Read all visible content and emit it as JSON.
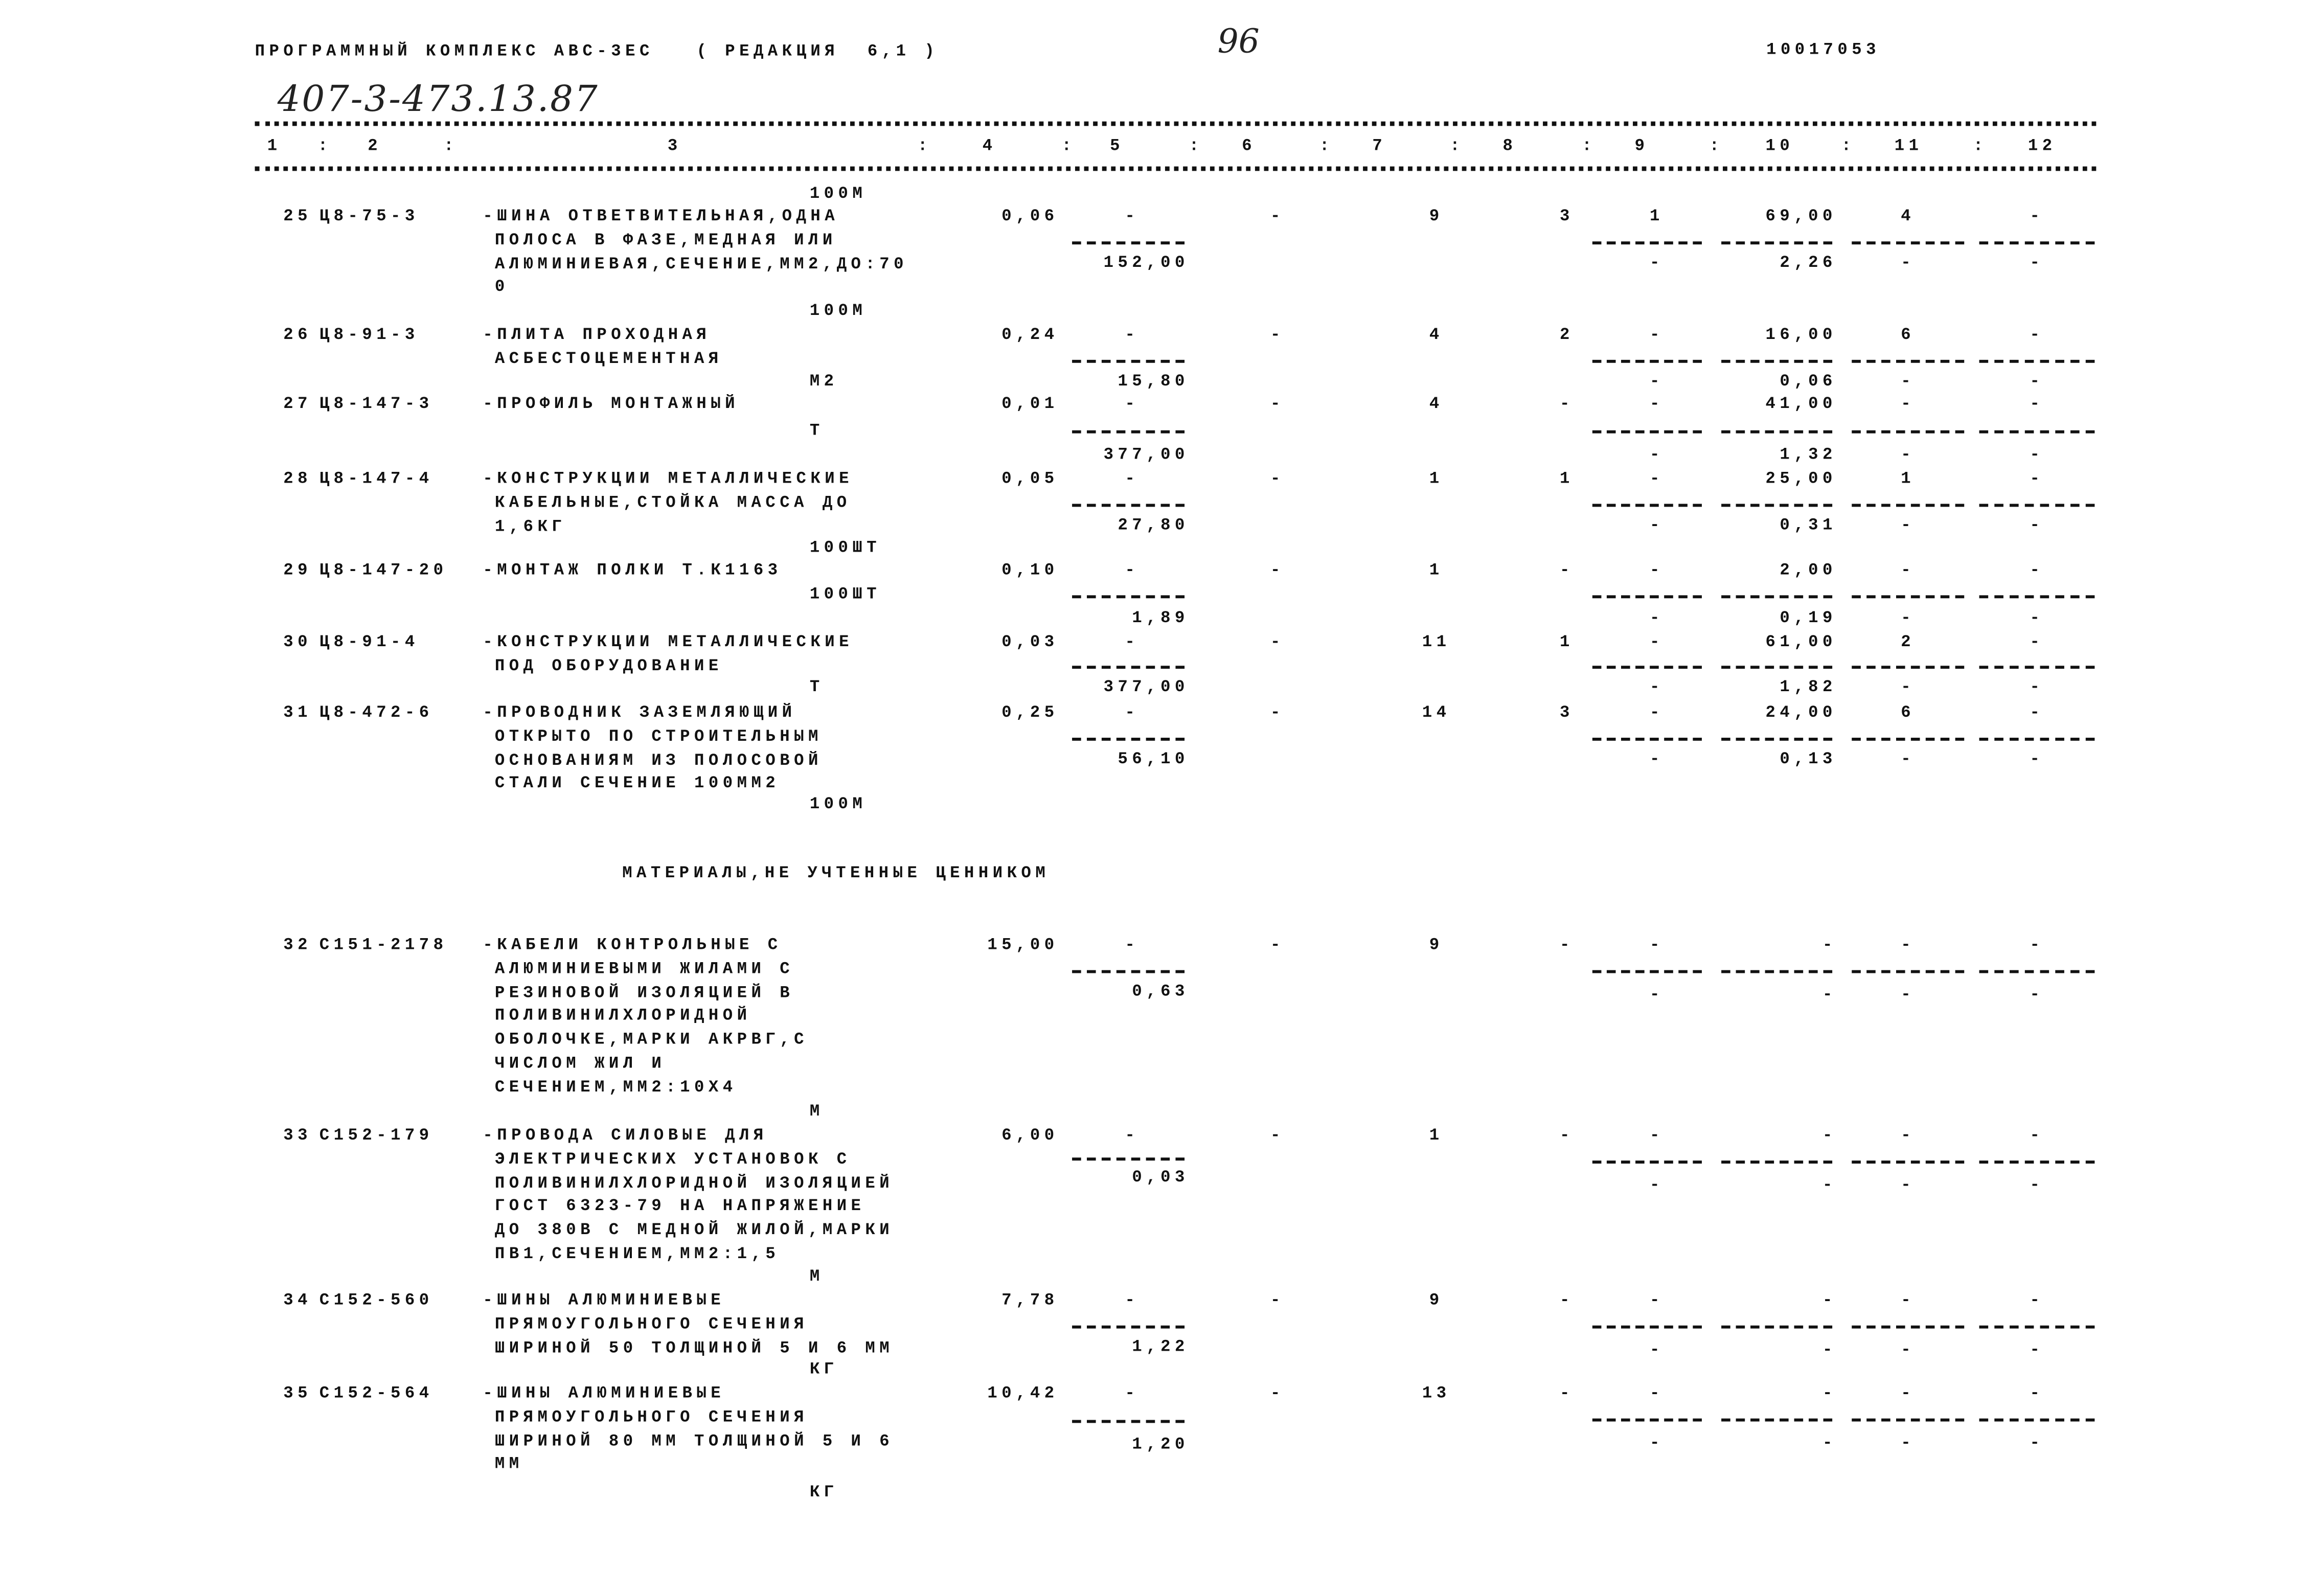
{
  "header": {
    "program_title": "ПРОГРАММНЫЙ КОМПЛЕКС АВС-3ЕС   ( РЕДАКЦИЯ  6,1 )",
    "page_number": "96",
    "document_code": "10017053",
    "handwritten_reference": "407-3-473.13.87"
  },
  "column_numbers": [
    "1",
    "2",
    "3",
    "4",
    "5",
    "6",
    "7",
    "8",
    "9",
    "10",
    "11",
    "12"
  ],
  "carryover_unit": "100М",
  "section_heading": "МАТЕРИАЛЫ,НЕ УЧТЕННЫЕ ЦЕННИКОМ",
  "items": [
    {
      "num": "25",
      "code": "Ц8-75-3",
      "desc": [
        "-ШИНА ОТВЕТВИТЕЛЬНАЯ,ОДНА",
        "ПОЛОСА В ФАЗЕ,МЕДНАЯ ИЛИ",
        "АЛЮМИНИЕВАЯ,СЕЧЕНИЕ,ММ2,ДО:70",
        "0"
      ],
      "unit": "100М",
      "c4": "0,06",
      "c5": "-",
      "c5b": "152,00",
      "c6": "-",
      "c7": "9",
      "c8": "3",
      "top": [
        "1",
        "69,00",
        "4",
        "-"
      ],
      "bottom": [
        "-",
        "2,26",
        "-",
        "-"
      ]
    },
    {
      "num": "26",
      "code": "Ц8-91-3",
      "desc": [
        "-ПЛИТА ПРОХОДНАЯ",
        "АСБЕСТОЦЕМЕНТНАЯ"
      ],
      "unit": "М2",
      "c4": "0,24",
      "c5": "-",
      "c5b": "15,80",
      "c6": "-",
      "c7": "4",
      "c8": "2",
      "top": [
        "-",
        "16,00",
        "6",
        "-"
      ],
      "bottom": [
        "-",
        "0,06",
        "-",
        "-"
      ]
    },
    {
      "num": "27",
      "code": "Ц8-147-3",
      "desc": [
        "-ПРОФИЛЬ МОНТАЖНЫЙ"
      ],
      "unit": "Т",
      "c4": "0,01",
      "c5": "-",
      "c5b": "377,00",
      "c6": "-",
      "c7": "4",
      "c8": "-",
      "top": [
        "-",
        "41,00",
        "-",
        "-"
      ],
      "bottom": [
        "-",
        "1,32",
        "-",
        "-"
      ]
    },
    {
      "num": "28",
      "code": "Ц8-147-4",
      "desc": [
        "-КОНСТРУКЦИИ МЕТАЛЛИЧЕСКИЕ",
        "КАБЕЛЬНЫЕ,СТОЙКА МАССА ДО",
        "1,6КГ"
      ],
      "unit": "100ШТ",
      "c4": "0,05",
      "c5": "-",
      "c5b": "27,80",
      "c6": "-",
      "c7": "1",
      "c8": "1",
      "top": [
        "-",
        "25,00",
        "1",
        "-"
      ],
      "bottom": [
        "-",
        "0,31",
        "-",
        "-"
      ]
    },
    {
      "num": "29",
      "code": "Ц8-147-20",
      "desc": [
        "-МОНТАЖ ПОЛКИ Т.К1163"
      ],
      "unit": "100ШТ",
      "c4": "0,10",
      "c5": "-",
      "c5b": "1,89",
      "c6": "-",
      "c7": "1",
      "c8": "-",
      "top": [
        "-",
        "2,00",
        "-",
        "-"
      ],
      "bottom": [
        "-",
        "0,19",
        "-",
        "-"
      ]
    },
    {
      "num": "30",
      "code": "Ц8-91-4",
      "desc": [
        "-КОНСТРУКЦИИ МЕТАЛЛИЧЕСКИЕ",
        "ПОД ОБОРУДОВАНИЕ"
      ],
      "unit": "Т",
      "c4": "0,03",
      "c5": "-",
      "c5b": "377,00",
      "c6": "-",
      "c7": "11",
      "c8": "1",
      "top": [
        "-",
        "61,00",
        "2",
        "-"
      ],
      "bottom": [
        "-",
        "1,82",
        "-",
        "-"
      ]
    },
    {
      "num": "31",
      "code": "Ц8-472-6",
      "desc": [
        "-ПРОВОДНИК ЗАЗЕМЛЯЮЩИЙ",
        "ОТКРЫТО ПО СТРОИТЕЛЬНЫМ",
        "ОСНОВАНИЯМ ИЗ ПОЛОСОВОЙ",
        "СТАЛИ СЕЧЕНИЕ 100ММ2"
      ],
      "unit": "100М",
      "c4": "0,25",
      "c5": "-",
      "c5b": "56,10",
      "c6": "-",
      "c7": "14",
      "c8": "3",
      "top": [
        "-",
        "24,00",
        "6",
        "-"
      ],
      "bottom": [
        "-",
        "0,13",
        "-",
        "-"
      ]
    },
    {
      "num": "32",
      "code": "С151-2178",
      "desc": [
        "-КАБЕЛИ КОНТРОЛЬНЫЕ С",
        "АЛЮМИНИЕВЫМИ ЖИЛАМИ С",
        "РЕЗИНОВОЙ ИЗОЛЯЦИЕЙ В",
        "ПОЛИВИНИЛХЛОРИДНОЙ",
        "ОБОЛОЧКЕ,МАРКИ АКРВГ,С",
        "ЧИСЛОМ ЖИЛ И",
        "СЕЧЕНИЕМ,ММ2:10Х4"
      ],
      "unit": "М",
      "c4": "15,00",
      "c5": "-",
      "c5b": "0,63",
      "c6": "-",
      "c7": "9",
      "c8": "-",
      "top": [
        "-",
        "-",
        "-",
        "-"
      ],
      "bottom": [
        "-",
        "-",
        "-",
        "-"
      ]
    },
    {
      "num": "33",
      "code": "С152-179",
      "desc": [
        "-ПРОВОДА СИЛОВЫЕ ДЛЯ",
        "ЭЛЕКТРИЧЕСКИХ УСТАНОВОК С",
        "ПОЛИВИНИЛХЛОРИДНОЙ ИЗОЛЯЦИЕЙ",
        "ГОСТ 6323-79 НА НАПРЯЖЕНИЕ",
        "ДО 380В С МЕДНОЙ ЖИЛОЙ,МАРКИ",
        "ПВ1,СЕЧЕНИЕМ,ММ2:1,5"
      ],
      "unit": "М",
      "c4": "6,00",
      "c5": "-",
      "c5b": "0,03",
      "c6": "-",
      "c7": "1",
      "c8": "-",
      "top": [
        "-",
        "-",
        "-",
        "-"
      ],
      "bottom": [
        "-",
        "-",
        "-",
        "-"
      ]
    },
    {
      "num": "34",
      "code": "С152-560",
      "desc": [
        "-ШИНЫ АЛЮМИНИЕВЫЕ",
        "ПРЯМОУГОЛЬНОГО СЕЧЕНИЯ",
        "ШИРИНОЙ 50 ТОЛЩИНОЙ 5 И 6 ММ"
      ],
      "unit": "КГ",
      "c4": "7,78",
      "c5": "-",
      "c5b": "1,22",
      "c6": "-",
      "c7": "9",
      "c8": "-",
      "top": [
        "-",
        "-",
        "-",
        "-"
      ],
      "bottom": [
        "-",
        "-",
        "-",
        "-"
      ]
    },
    {
      "num": "35",
      "code": "С152-564",
      "desc": [
        "-ШИНЫ АЛЮМИНИЕВЫЕ",
        "ПРЯМОУГОЛЬНОГО СЕЧЕНИЯ",
        "ШИРИНОЙ 80 ММ ТОЛЩИНОЙ 5 И 6",
        "ММ"
      ],
      "unit": "КГ",
      "c4": "10,42",
      "c5": "-",
      "c5b": "1,20",
      "c6": "-",
      "c7": "13",
      "c8": "-",
      "top": [
        "-",
        "-",
        "-",
        "-"
      ],
      "bottom": [
        "-",
        "-",
        "-",
        "-"
      ]
    }
  ]
}
